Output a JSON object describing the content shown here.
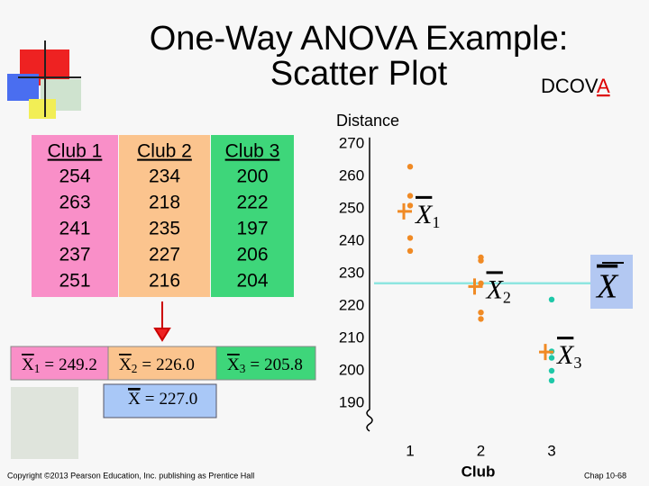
{
  "title": "One-Way ANOVA Example:",
  "subtitle": "Scatter Plot",
  "tag": [
    "DCOV",
    "A"
  ],
  "table": {
    "headers": [
      "Club 1",
      "Club 2",
      "Club 3"
    ],
    "colors": [
      "#f98fc8",
      "#fbc48e",
      "#3ed67a"
    ],
    "rows": [
      [
        254,
        234,
        200
      ],
      [
        263,
        218,
        222
      ],
      [
        241,
        235,
        197
      ],
      [
        237,
        227,
        206
      ],
      [
        251,
        216,
        204
      ]
    ]
  },
  "means": [
    {
      "symbol": "X",
      "subscript": "1",
      "operator": "=",
      "value": 249.2
    },
    {
      "symbol": "X",
      "subscript": "2",
      "operator": "=",
      "value": 226.0,
      "value_label": "226.0"
    },
    {
      "symbol": "X",
      "subscript": "3",
      "operator": "=",
      "value": 205.8
    }
  ],
  "grand_mean": {
    "symbol": "X",
    "operator": "=",
    "value": 227.0,
    "value_label": "227.0"
  },
  "chart_data": {
    "type": "scatter",
    "y_label": "Distance",
    "x_label": "Club",
    "ylim": [
      184,
      272
    ],
    "yticks": [
      190,
      200,
      210,
      220,
      230,
      240,
      250,
      260,
      270
    ],
    "xlim": [
      0.3,
      3.6
    ],
    "xticks": [
      1,
      2,
      3
    ],
    "point_color": "#f08a24",
    "mean_line_color": "#8ee6e0",
    "series": [
      {
        "x": [
          1,
          1,
          1,
          1,
          1
        ],
        "values": [
          254,
          263,
          241,
          237,
          251
        ]
      },
      {
        "x": [
          2,
          2,
          2,
          2,
          2
        ],
        "values": [
          234,
          218,
          235,
          227,
          216
        ]
      },
      {
        "x": [
          3,
          3,
          3,
          3,
          3
        ],
        "values": [
          200,
          222,
          197,
          206,
          204
        ]
      }
    ]
  },
  "footer": {
    "copyright": "Copyright ©2013 Pearson Education, Inc. publishing as Prentice Hall",
    "page": "Chap 10-68"
  }
}
